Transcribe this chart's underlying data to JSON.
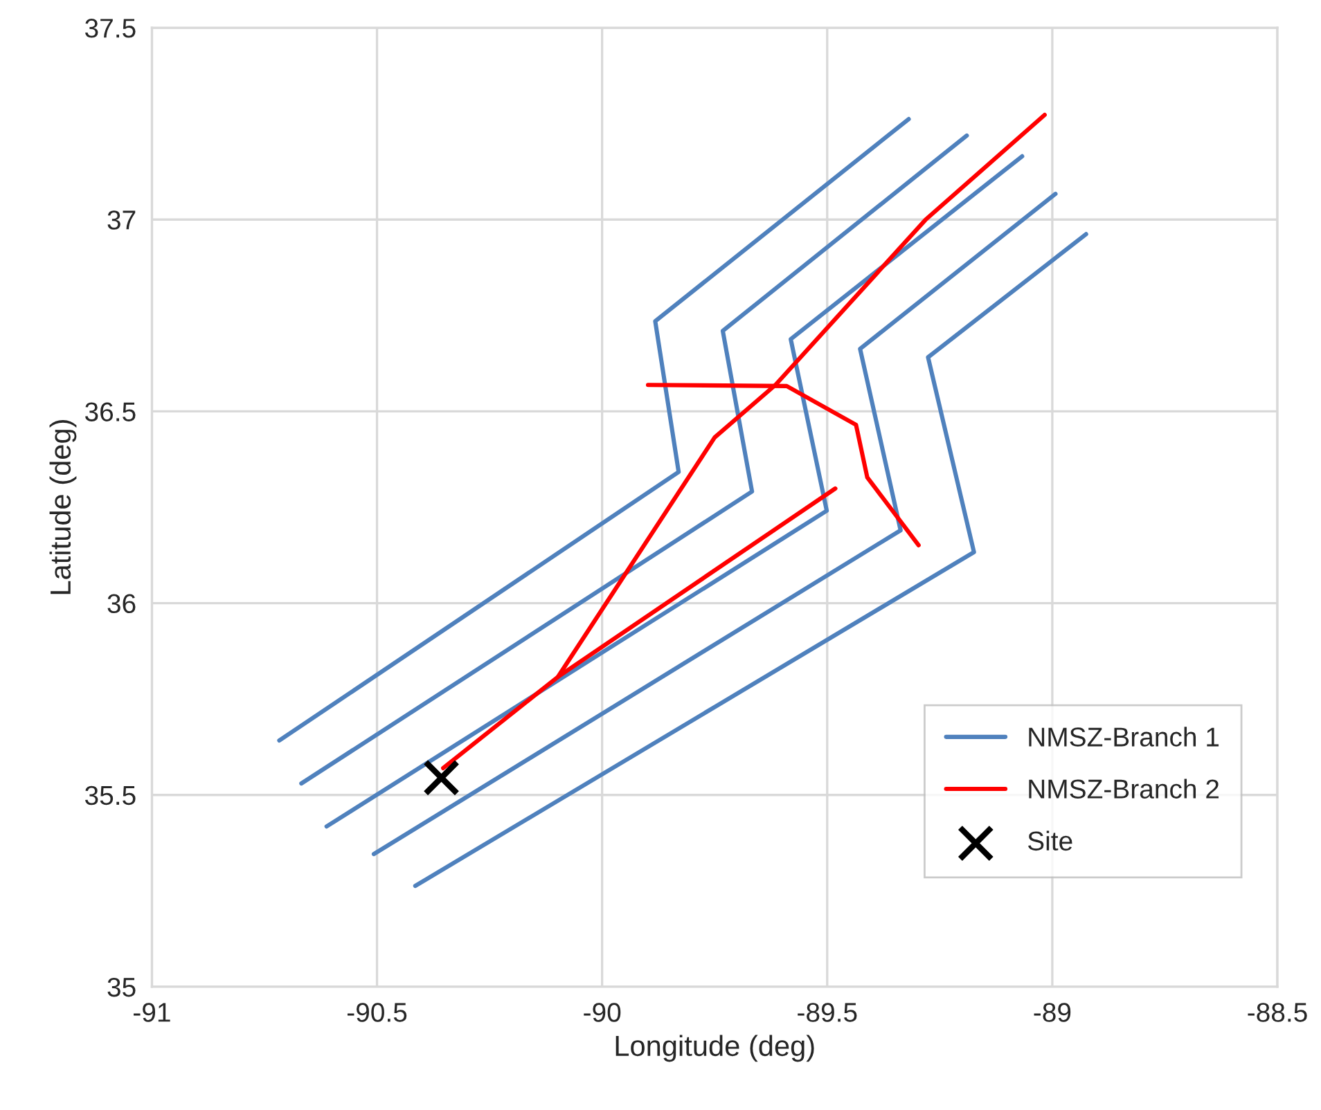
{
  "chart_data": {
    "type": "line",
    "xlabel": "Longitude (deg)",
    "ylabel": "Latitude (deg)",
    "xlim": [
      -91,
      -88.5
    ],
    "xticks": [
      -91,
      -90.5,
      -90,
      -89.5,
      -89,
      -88.5
    ],
    "ylim": [
      35,
      37.5
    ],
    "yticks": [
      35,
      35.5,
      36,
      36.5,
      37,
      37.5
    ],
    "grid": true,
    "legend": "bottom right",
    "marker": "none",
    "line_style": "solid",
    "series": [
      {
        "name": "NMSZ-Branch 1",
        "color": "#4f81bd",
        "x": [
          -90.717,
          -89.83,
          -89.882,
          -89.319
        ],
        "values": [
          35.642,
          36.342,
          36.735,
          37.262
        ]
      },
      {
        "color": "#4f81bd",
        "x": [
          -90.668,
          -89.667,
          -89.732,
          -89.19
        ],
        "values": [
          35.53,
          36.291,
          36.71,
          37.219
        ]
      },
      {
        "color": "#4f81bd",
        "x": [
          -90.612,
          -89.501,
          -89.581,
          -89.067
        ],
        "values": [
          35.418,
          36.241,
          36.688,
          37.165
        ]
      },
      {
        "color": "#4f81bd",
        "x": [
          -90.507,
          -89.337,
          -89.427,
          -88.993
        ],
        "values": [
          35.346,
          36.19,
          36.663,
          37.067
        ]
      },
      {
        "color": "#4f81bd",
        "x": [
          -90.415,
          -89.174,
          -89.276,
          -88.925
        ],
        "values": [
          35.263,
          36.133,
          36.641,
          36.962
        ]
      },
      {
        "name": "NMSZ-Branch 2",
        "color": "#ff0000",
        "x": [
          -90.353,
          -90.098,
          -89.75,
          -89.615,
          -89.282,
          -89.017
        ],
        "values": [
          35.57,
          35.808,
          36.432,
          36.569,
          36.999,
          37.273
        ]
      },
      {
        "color": "#ff0000",
        "x": [
          -90.098,
          -89.482
        ],
        "values": [
          35.808,
          36.299
        ]
      },
      {
        "color": "#ff0000",
        "x": [
          -89.898,
          -89.59,
          -89.436,
          -89.411,
          -89.297
        ],
        "values": [
          36.569,
          36.566,
          36.465,
          36.328,
          36.151
        ]
      },
      {
        "name": "Site",
        "type": "scatter",
        "marker": "cross",
        "color": "#000000",
        "x": [
          -90.357
        ],
        "values": [
          35.545
        ]
      }
    ]
  }
}
